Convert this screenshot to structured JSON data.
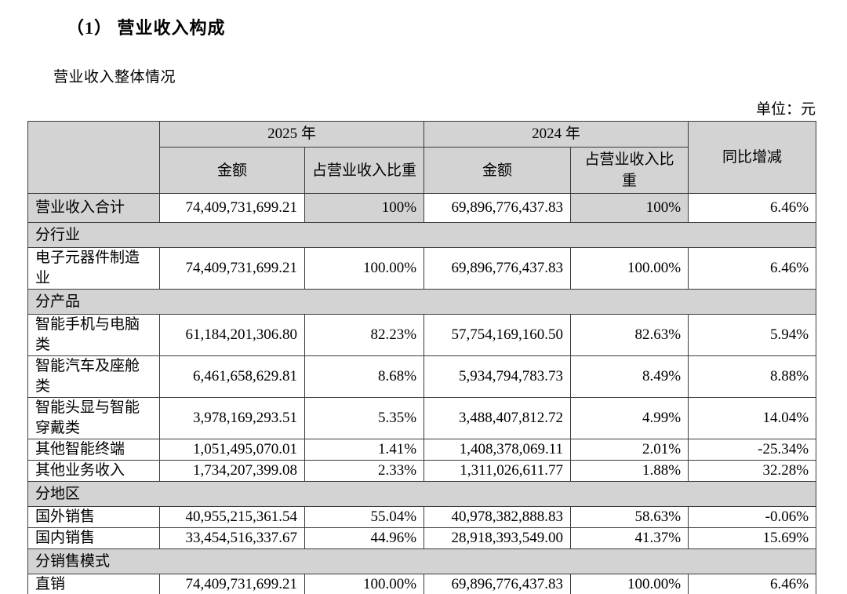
{
  "page": {
    "title": "（1） 营业收入构成",
    "subtitle": "营业收入整体情况",
    "unit_label": "单位：元"
  },
  "table": {
    "header": {
      "year_2025": "2025 年",
      "year_2024": "2024 年",
      "amount": "金额",
      "share": "占营业收入比重",
      "yoy": "同比增减"
    },
    "rows": [
      {
        "type": "data",
        "emphasis": true,
        "label": "营业收入合计",
        "amount_2025": "74,409,731,699.21",
        "share_2025": "100%",
        "amount_2024": "69,896,776,437.83",
        "share_2024": "100%",
        "yoy": "6.46%"
      },
      {
        "type": "section",
        "label": "分行业"
      },
      {
        "type": "data",
        "emphasis": false,
        "label": "电子元器件制造业",
        "amount_2025": "74,409,731,699.21",
        "share_2025": "100.00%",
        "amount_2024": "69,896,776,437.83",
        "share_2024": "100.00%",
        "yoy": "6.46%"
      },
      {
        "type": "section",
        "label": "分产品"
      },
      {
        "type": "data",
        "emphasis": false,
        "label": "智能手机与电脑类",
        "amount_2025": "61,184,201,306.80",
        "share_2025": "82.23%",
        "amount_2024": "57,754,169,160.50",
        "share_2024": "82.63%",
        "yoy": "5.94%"
      },
      {
        "type": "data",
        "emphasis": false,
        "label": "智能汽车及座舱类",
        "amount_2025": "6,461,658,629.81",
        "share_2025": "8.68%",
        "amount_2024": "5,934,794,783.73",
        "share_2024": "8.49%",
        "yoy": "8.88%"
      },
      {
        "type": "data",
        "emphasis": false,
        "label": "智能头显与智能穿戴类",
        "amount_2025": "3,978,169,293.51",
        "share_2025": "5.35%",
        "amount_2024": "3,488,407,812.72",
        "share_2024": "4.99%",
        "yoy": "14.04%"
      },
      {
        "type": "data",
        "emphasis": false,
        "label": "其他智能终端",
        "amount_2025": "1,051,495,070.01",
        "share_2025": "1.41%",
        "amount_2024": "1,408,378,069.11",
        "share_2024": "2.01%",
        "yoy": "-25.34%"
      },
      {
        "type": "data",
        "emphasis": false,
        "label": "其他业务收入",
        "amount_2025": "1,734,207,399.08",
        "share_2025": "2.33%",
        "amount_2024": "1,311,026,611.77",
        "share_2024": "1.88%",
        "yoy": "32.28%"
      },
      {
        "type": "section",
        "label": "分地区"
      },
      {
        "type": "data",
        "emphasis": false,
        "label": "国外销售",
        "amount_2025": "40,955,215,361.54",
        "share_2025": "55.04%",
        "amount_2024": "40,978,382,888.83",
        "share_2024": "58.63%",
        "yoy": "-0.06%"
      },
      {
        "type": "data",
        "emphasis": false,
        "label": "国内销售",
        "amount_2025": "33,454,516,337.67",
        "share_2025": "44.96%",
        "amount_2024": "28,918,393,549.00",
        "share_2024": "41.37%",
        "yoy": "15.69%"
      },
      {
        "type": "section",
        "label": "分销售模式"
      },
      {
        "type": "data",
        "emphasis": false,
        "label": "直销",
        "amount_2025": "74,409,731,699.21",
        "share_2025": "100.00%",
        "amount_2024": "69,896,776,437.83",
        "share_2024": "100.00%",
        "yoy": "6.46%"
      }
    ]
  },
  "colors": {
    "header_bg": "#d3d3d3",
    "section_bg": "#d3d3d3",
    "border": "#3b3b3b",
    "page_bg": "#ffffff"
  }
}
